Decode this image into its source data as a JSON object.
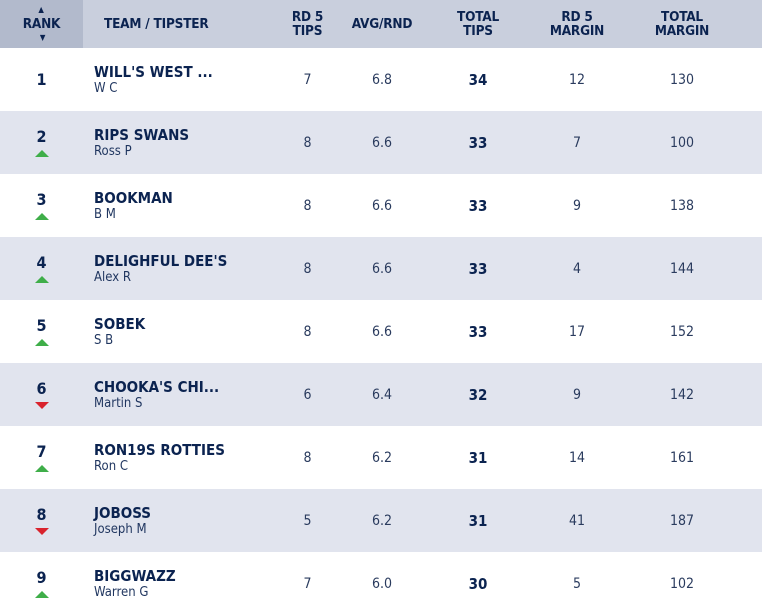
{
  "header": {
    "rank": "RANK",
    "team": "TEAM / TIPSTER",
    "rd5_tips_l1": "RD 5",
    "rd5_tips_l2": "TIPS",
    "avg": "AVG/RND",
    "total_tips_l1": "TOTAL",
    "total_tips_l2": "TIPS",
    "rd5_margin_l1": "RD 5",
    "rd5_margin_l2": "MARGIN",
    "total_margin_l1": "TOTAL",
    "total_margin_l2": "MARGIN"
  },
  "rows": [
    {
      "rank": "1",
      "trend": "none",
      "team": "WILL'S WEST ...",
      "tipster": "W C",
      "rd5_tips": "7",
      "avg": "6.8",
      "total_tips": "34",
      "rd5_margin": "12",
      "total_margin": "130"
    },
    {
      "rank": "2",
      "trend": "up",
      "team": "RIPS SWANS",
      "tipster": "Ross P",
      "rd5_tips": "8",
      "avg": "6.6",
      "total_tips": "33",
      "rd5_margin": "7",
      "total_margin": "100"
    },
    {
      "rank": "3",
      "trend": "up",
      "team": "BOOKMAN",
      "tipster": "B M",
      "rd5_tips": "8",
      "avg": "6.6",
      "total_tips": "33",
      "rd5_margin": "9",
      "total_margin": "138"
    },
    {
      "rank": "4",
      "trend": "up",
      "team": "DELIGHFUL DEE'S",
      "tipster": "Alex R",
      "rd5_tips": "8",
      "avg": "6.6",
      "total_tips": "33",
      "rd5_margin": "4",
      "total_margin": "144"
    },
    {
      "rank": "5",
      "trend": "up",
      "team": "SOBEK",
      "tipster": "S B",
      "rd5_tips": "8",
      "avg": "6.6",
      "total_tips": "33",
      "rd5_margin": "17",
      "total_margin": "152"
    },
    {
      "rank": "6",
      "trend": "down",
      "team": "CHOOKA'S CHI...",
      "tipster": "Martin S",
      "rd5_tips": "6",
      "avg": "6.4",
      "total_tips": "32",
      "rd5_margin": "9",
      "total_margin": "142"
    },
    {
      "rank": "7",
      "trend": "up",
      "team": "RON19S ROTTIES",
      "tipster": "Ron C",
      "rd5_tips": "8",
      "avg": "6.2",
      "total_tips": "31",
      "rd5_margin": "14",
      "total_margin": "161"
    },
    {
      "rank": "8",
      "trend": "down",
      "team": "JOBOSS",
      "tipster": "Joseph M",
      "rd5_tips": "5",
      "avg": "6.2",
      "total_tips": "31",
      "rd5_margin": "41",
      "total_margin": "187"
    },
    {
      "rank": "9",
      "trend": "up",
      "team": "BIGGWAZZ",
      "tipster": "Warren G",
      "rd5_tips": "7",
      "avg": "6.0",
      "total_tips": "30",
      "rd5_margin": "5",
      "total_margin": "102"
    }
  ],
  "colors": {
    "header_bg": "#c9cfdd",
    "rank_header_bg": "#b2bacc",
    "alt_row": "#e1e4ee",
    "text": "#0b2350",
    "up": "#3fae49",
    "down": "#d9232d"
  }
}
